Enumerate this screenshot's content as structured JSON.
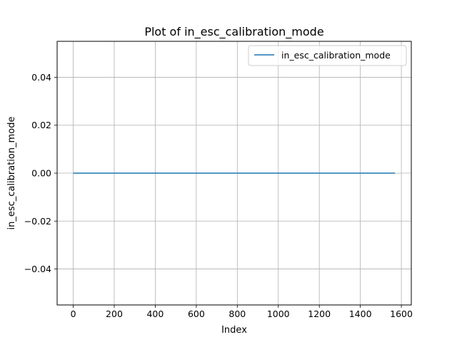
{
  "chart_data": {
    "type": "line",
    "title": "Plot of in_esc_calibration_mode",
    "xlabel": "Index",
    "ylabel": "in_esc_calibration_mode",
    "xlim": [
      -78.5,
      1648.5
    ],
    "ylim": [
      -0.055,
      0.055
    ],
    "xticks": [
      0,
      200,
      400,
      600,
      800,
      1000,
      1200,
      1400,
      1600
    ],
    "yticks": [
      -0.04,
      -0.02,
      0.0,
      0.02,
      0.04
    ],
    "xtick_labels": [
      "0",
      "200",
      "400",
      "600",
      "800",
      "1000",
      "1200",
      "1400",
      "1600"
    ],
    "ytick_labels": [
      "−0.04",
      "−0.02",
      "0.00",
      "0.02",
      "0.04"
    ],
    "grid": true,
    "legend_position": "top-right",
    "series": [
      {
        "name": "in_esc_calibration_mode",
        "color": "#1f77b4",
        "x": [
          0,
          1569
        ],
        "y": [
          0,
          0
        ]
      }
    ]
  }
}
